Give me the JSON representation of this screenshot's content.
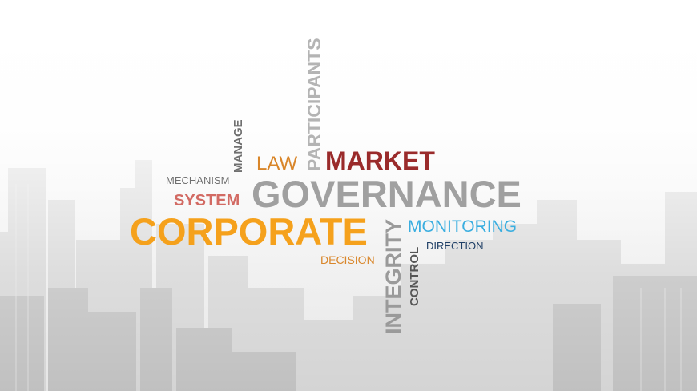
{
  "words": {
    "participants": "PARTICIPANTS",
    "manage": "MANAGE",
    "law": "LAW",
    "market": "MARKET",
    "mechanism": "MECHANISM",
    "system": "SYSTEM",
    "governance": "GOVERNANCE",
    "corporate": "CORPORATE",
    "integrity": "INTEGRITY",
    "monitoring": "MONITORING",
    "control": "CONTROL",
    "direction": "DIRECTION",
    "decision": "DECISION"
  },
  "colors": {
    "gray": "#8c8c8c",
    "dark_gray": "#555555",
    "orange": "#f5a11c",
    "dark_orange": "#d9862a",
    "maroon": "#9a2b2b",
    "red": "#d26a63",
    "blue": "#3aaee0",
    "navy": "#1f3f66"
  },
  "background": {
    "icon": "city-skyline"
  }
}
